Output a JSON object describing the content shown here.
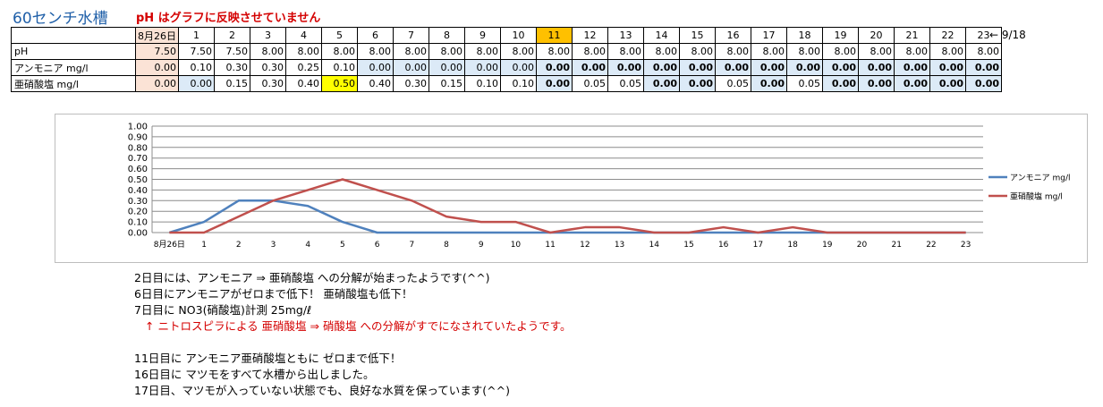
{
  "header": {
    "title": "60センチ水槽",
    "note": "pH はグラフに反映させていません",
    "date_note": "← 9/18"
  },
  "table": {
    "days": [
      "8月26日",
      "1",
      "2",
      "3",
      "4",
      "5",
      "6",
      "7",
      "8",
      "9",
      "10",
      "11",
      "12",
      "13",
      "14",
      "15",
      "16",
      "17",
      "18",
      "19",
      "20",
      "21",
      "22",
      "23"
    ],
    "rows": [
      {
        "label": "pH",
        "values": [
          "7.50",
          "7.50",
          "7.50",
          "8.00",
          "8.00",
          "8.00",
          "8.00",
          "8.00",
          "8.00",
          "8.00",
          "8.00",
          "8.00",
          "8.00",
          "8.00",
          "8.00",
          "8.00",
          "8.00",
          "8.00",
          "8.00",
          "8.00",
          "8.00",
          "8.00",
          "8.00",
          "8.00"
        ]
      },
      {
        "label": "アンモニア mg/l",
        "values": [
          "0.00",
          "0.10",
          "0.30",
          "0.30",
          "0.25",
          "0.10",
          "0.00",
          "0.00",
          "0.00",
          "0.00",
          "0.00",
          "0.00",
          "0.00",
          "0.00",
          "0.00",
          "0.00",
          "0.00",
          "0.00",
          "0.00",
          "0.00",
          "0.00",
          "0.00",
          "0.00",
          "0.00"
        ]
      },
      {
        "label": "亜硝酸塩 mg/l",
        "values": [
          "0.00",
          "0.00",
          "0.15",
          "0.30",
          "0.40",
          "0.50",
          "0.40",
          "0.30",
          "0.15",
          "0.10",
          "0.10",
          "0.00",
          "0.05",
          "0.05",
          "0.00",
          "0.00",
          "0.05",
          "0.00",
          "0.05",
          "0.00",
          "0.00",
          "0.00",
          "0.00",
          "0.00"
        ]
      }
    ],
    "highlight_day_color": "#ffc000",
    "highlight_cell_color": "#ffff00"
  },
  "chart_data": {
    "type": "line",
    "categories": [
      "8月26日",
      "1",
      "2",
      "3",
      "4",
      "5",
      "6",
      "7",
      "8",
      "9",
      "10",
      "11",
      "12",
      "13",
      "14",
      "15",
      "16",
      "17",
      "18",
      "19",
      "20",
      "21",
      "22",
      "23"
    ],
    "series": [
      {
        "name": "アンモニア mg/l",
        "color": "#4f81bd",
        "values": [
          0,
          0.1,
          0.3,
          0.3,
          0.25,
          0.1,
          0,
          0,
          0,
          0,
          0,
          0,
          0,
          0,
          0,
          0,
          0,
          0,
          0,
          0,
          0,
          0,
          0,
          0
        ]
      },
      {
        "name": "亜硝酸塩 mg/l",
        "color": "#c0504d",
        "values": [
          0,
          0,
          0.15,
          0.3,
          0.4,
          0.5,
          0.4,
          0.3,
          0.15,
          0.1,
          0.1,
          0,
          0.05,
          0.05,
          0,
          0,
          0.05,
          0,
          0.05,
          0,
          0,
          0,
          0,
          0
        ]
      }
    ],
    "ylim": [
      0,
      1.0
    ],
    "yticks": [
      "0.00",
      "0.10",
      "0.20",
      "0.30",
      "0.40",
      "0.50",
      "0.60",
      "0.70",
      "0.80",
      "0.90",
      "1.00"
    ],
    "grid": true,
    "legend": "right",
    "title": "",
    "xlabel": "",
    "ylabel": ""
  },
  "comments": [
    {
      "text": "2日目には、アンモニア ⇒ 亜硝酸塩 への分解が始まったようです(^^)",
      "red": false
    },
    {
      "text": "6日目にアンモニアがゼロまで低下！ 亜硝酸塩も低下！",
      "red": false
    },
    {
      "text": "7日目に NO3(硝酸塩)計測 25mg/ℓ",
      "red": false
    },
    {
      "text": "↑ ニトロスピラによる 亜硝酸塩 ⇒ 硝酸塩 への分解がすでになされていたようです。",
      "red": true
    },
    {
      "text": "",
      "red": false
    },
    {
      "text": "11日目に アンモニア亜硝酸塩ともに ゼロまで低下！",
      "red": false
    },
    {
      "text": "16日目に マツモをすべて水槽から出しました。",
      "red": false
    },
    {
      "text": "17日目、マツモが入っていない状態でも、良好な水質を保っています(^^)",
      "red": false
    }
  ]
}
